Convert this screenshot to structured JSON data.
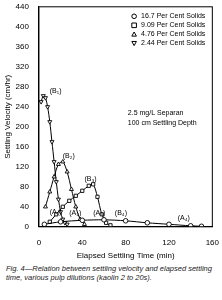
{
  "chart_data": {
    "type": "line",
    "title": "Fig. 4—Relation between settling velocity and elapsed settling time, various pulp dilutions (kaolin 2 to 20s).",
    "x_label": "Elapsed Settling Time (min)",
    "y_label": "Settling Velocity (cm/hr)",
    "xlim": [
      0,
      160
    ],
    "xticks": [
      0,
      40,
      80,
      120,
      160
    ],
    "ylim": [
      0,
      440
    ],
    "yticks": [
      0,
      40,
      80,
      120,
      160,
      200,
      240,
      280,
      320,
      360,
      400,
      440
    ],
    "grid": false,
    "legend": "upper right",
    "series": [
      {
        "name": "16.7 Per Cent Solids",
        "color": "#000000",
        "marker": "circle",
        "x": [
          5,
          20,
          40,
          60,
          80,
          100,
          120,
          140,
          150
        ],
        "values": [
          5,
          10,
          13,
          14,
          12,
          8,
          5,
          2,
          1
        ]
      },
      {
        "name": "9.09 Per Cent Solids",
        "color": "#000000",
        "marker": "square",
        "x": [
          10,
          16,
          22,
          28,
          34,
          40,
          46,
          50,
          54,
          58,
          62,
          66
        ],
        "values": [
          10,
          25,
          40,
          52,
          62,
          72,
          82,
          85,
          60,
          25,
          8,
          3
        ]
      },
      {
        "name": "4.76 Per Cent Solids",
        "color": "#000000",
        "marker": "triangle",
        "x": [
          6,
          10,
          14,
          18,
          22,
          26,
          30,
          34,
          38,
          42
        ],
        "values": [
          40,
          70,
          100,
          125,
          130,
          110,
          75,
          40,
          15,
          5
        ]
      },
      {
        "name": "2.44 Per Cent Solids",
        "color": "#000000",
        "marker": "triangle-down",
        "x": [
          2,
          4,
          6,
          8,
          10,
          12,
          14,
          16,
          18,
          20,
          22,
          24,
          26
        ],
        "values": [
          250,
          262,
          258,
          240,
          210,
          170,
          130,
          90,
          55,
          30,
          15,
          8,
          5
        ]
      }
    ],
    "annotations": [
      {
        "text": "(B₁)",
        "x": 10,
        "y": 272
      },
      {
        "text": "(B₂)",
        "x": 22,
        "y": 142
      },
      {
        "text": "(B₃)",
        "x": 42,
        "y": 96
      },
      {
        "text": "(B₄)",
        "x": 70,
        "y": 28
      },
      {
        "text": "(A₁)",
        "x": 10,
        "y": 30
      },
      {
        "text": "(A₂)",
        "x": 28,
        "y": 28
      },
      {
        "text": "(A₃)",
        "x": 50,
        "y": 28
      },
      {
        "text": "(A₄)",
        "x": 128,
        "y": 18
      },
      {
        "text": "2.5 mg/L Separan",
        "x": 82,
        "y": 228
      },
      {
        "text": "100 cm Settling Depth",
        "x": 82,
        "y": 208
      }
    ]
  }
}
